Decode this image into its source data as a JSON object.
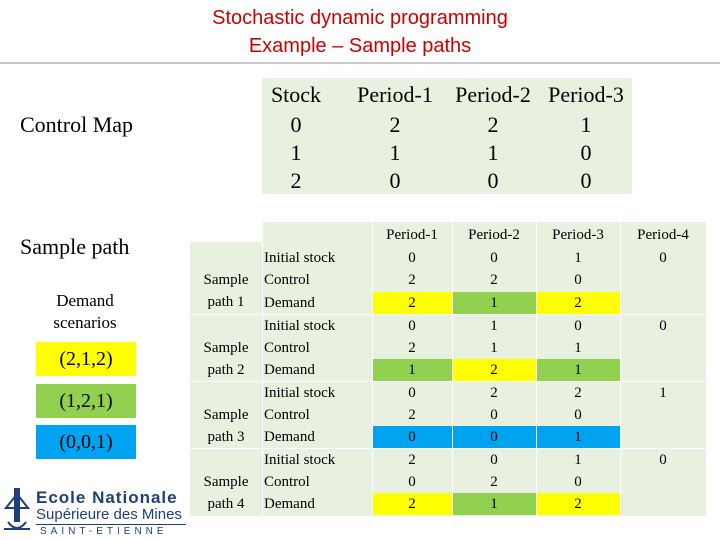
{
  "title": {
    "line1": "Stochastic dynamic programming",
    "line2": "Example – Sample paths"
  },
  "control_map": {
    "label": "Control Map",
    "headers": [
      "Stock",
      "Period-1",
      "Period-2",
      "Period-3"
    ],
    "rows": [
      [
        "0",
        "2",
        "2",
        "1"
      ],
      [
        "1",
        "1",
        "1",
        "0"
      ],
      [
        "2",
        "0",
        "0",
        "0"
      ]
    ]
  },
  "sample_section": {
    "label": "Sample path",
    "demand_label_1": "Demand",
    "demand_label_2": "scenarios",
    "scenarios": [
      {
        "text": "(2,1,2)",
        "color": "#ffff00"
      },
      {
        "text": "(1,2,1)",
        "color": "#92d050"
      },
      {
        "text": "(0,0,1)",
        "color": "#00a3f0"
      }
    ]
  },
  "sample_table": {
    "headers": [
      "Period-1",
      "Period-2",
      "Period-3",
      "Period-4"
    ],
    "paths": [
      {
        "label1": "Sample",
        "label2": "path 1",
        "rows": [
          {
            "name": "Initial stock",
            "values": [
              "0",
              "0",
              "1",
              "0"
            ]
          },
          {
            "name": "Control",
            "values": [
              "2",
              "2",
              "0",
              ""
            ]
          },
          {
            "name": "Demand",
            "values": [
              "2",
              "1",
              "2",
              ""
            ]
          }
        ]
      },
      {
        "label1": "Sample",
        "label2": "path 2",
        "rows": [
          {
            "name": "Initial stock",
            "values": [
              "0",
              "1",
              "0",
              "0"
            ]
          },
          {
            "name": "Control",
            "values": [
              "2",
              "1",
              "1",
              ""
            ]
          },
          {
            "name": "Demand",
            "values": [
              "1",
              "2",
              "1",
              ""
            ]
          }
        ]
      },
      {
        "label1": "Sample",
        "label2": "path 3",
        "rows": [
          {
            "name": "Initial stock",
            "values": [
              "0",
              "2",
              "2",
              "1"
            ]
          },
          {
            "name": "Control",
            "values": [
              "2",
              "0",
              "0",
              ""
            ]
          },
          {
            "name": "Demand",
            "values": [
              "0",
              "0",
              "1",
              ""
            ]
          }
        ]
      },
      {
        "label1": "Sample",
        "label2": "path 4",
        "rows": [
          {
            "name": "Initial stock",
            "values": [
              "2",
              "0",
              "1",
              "0"
            ]
          },
          {
            "name": "Control",
            "values": [
              "0",
              "2",
              "0",
              ""
            ]
          },
          {
            "name": "Demand",
            "values": [
              "2",
              "1",
              "2",
              ""
            ]
          }
        ]
      }
    ]
  },
  "logo": {
    "line1": "Ecole Nationale",
    "line2": "Supérieure des Mines",
    "line3": "SAINT-ETIENNE"
  }
}
